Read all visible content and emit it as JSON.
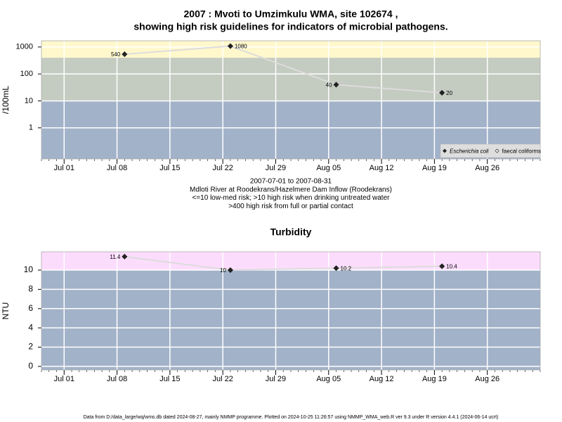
{
  "title_lines": [
    "2007 : Mvoti to Umzimkulu WMA, site 102674 ,",
    "showing high risk guidelines for indicators of microbial pathogens."
  ],
  "footer": "Data from D:/data_large/wq/wms.db dated 2024-08-27, mainly NMMP programme. Plotted on 2024-10-25 11:26:57 using NMMP_WMA_web.R ver 9.3 under R version 4.4.1 (2024-06-14 ucrt)",
  "chart_data": [
    {
      "type": "line",
      "ylabel": "/100mL",
      "log_y": true,
      "x": [
        "2007-07-09",
        "2007-07-23",
        "2007-08-06",
        "2007-08-20"
      ],
      "series": [
        {
          "name": "Escherichia coli",
          "color": "#222222",
          "marker": "filled",
          "values": [
            540,
            1080,
            40,
            20
          ]
        },
        {
          "name": "faecal coliforms",
          "color": "#222222",
          "marker": "open",
          "values": [
            null,
            null,
            null,
            null
          ]
        }
      ],
      "line_color": "#dcdcdc",
      "xlim": [
        "2007-06-28",
        "2007-09-02"
      ],
      "xticks": [
        {
          "value": "2007-07-01",
          "label": "Jul 01"
        },
        {
          "value": "2007-07-08",
          "label": "Jul 08"
        },
        {
          "value": "2007-07-15",
          "label": "Jul 15"
        },
        {
          "value": "2007-07-22",
          "label": "Jul 22"
        },
        {
          "value": "2007-07-29",
          "label": "Jul 29"
        },
        {
          "value": "2007-08-05",
          "label": "Aug 05"
        },
        {
          "value": "2007-08-12",
          "label": "Aug 12"
        },
        {
          "value": "2007-08-19",
          "label": "Aug 19"
        },
        {
          "value": "2007-08-26",
          "label": "Aug 26"
        }
      ],
      "ylim": [
        0.07,
        1700
      ],
      "yticks": [
        1,
        10,
        100,
        1000
      ],
      "band_breaks": [
        10,
        400
      ],
      "band_colors": [
        "#a2b2c9",
        "#c4cbc0",
        "#fff8cc"
      ],
      "grid": true,
      "legend": "bottom right",
      "notes": [
        "2007-07-01 to 2007-08-31",
        "Mdloti River at Roodekrans/Hazelmere Dam Inflow (Roodekrans)",
        "<=10 low-med risk; >10 high risk when drinking untreated water",
        ">400 high risk from full or partial contact"
      ]
    },
    {
      "type": "line",
      "title": "Turbidity",
      "ylabel": "NTU",
      "log_y": false,
      "x": [
        "2007-07-09",
        "2007-07-23",
        "2007-08-06",
        "2007-08-20"
      ],
      "series": [
        {
          "color": "#222222",
          "marker": "filled",
          "values": [
            11.4,
            10,
            10.2,
            10.4
          ]
        }
      ],
      "line_color": "#dcdcdc",
      "xlim": [
        "2007-06-28",
        "2007-09-02"
      ],
      "xticks": [
        {
          "value": "2007-07-01",
          "label": "Jul 01"
        },
        {
          "value": "2007-07-08",
          "label": "Jul 08"
        },
        {
          "value": "2007-07-15",
          "label": "Jul 15"
        },
        {
          "value": "2007-07-22",
          "label": "Jul 22"
        },
        {
          "value": "2007-07-29",
          "label": "Jul 29"
        },
        {
          "value": "2007-08-05",
          "label": "Aug 05"
        },
        {
          "value": "2007-08-12",
          "label": "Aug 12"
        },
        {
          "value": "2007-08-19",
          "label": "Aug 19"
        },
        {
          "value": "2007-08-26",
          "label": "Aug 26"
        }
      ],
      "ylim": [
        -0.37,
        11.9
      ],
      "yticks": [
        0,
        2,
        4,
        6,
        8,
        10
      ],
      "band_breaks": [
        10
      ],
      "band_colors": [
        "#a2b2c9",
        "#fcdcfc"
      ],
      "grid": true
    }
  ]
}
